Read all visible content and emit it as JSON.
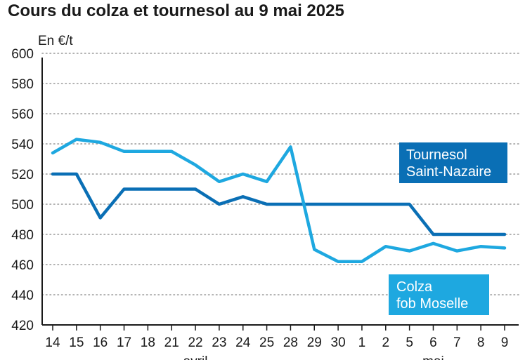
{
  "chart_data": {
    "type": "line",
    "title": "Cours du colza et tournesol au 9 mai 2025",
    "ylabel": "En €/t",
    "xlabel": "",
    "ylim": [
      420,
      600
    ],
    "yticks": [
      420,
      440,
      460,
      480,
      500,
      520,
      540,
      560,
      580,
      600
    ],
    "grid": true,
    "categories": [
      "14",
      "15",
      "16",
      "17",
      "18",
      "21",
      "22",
      "23",
      "24",
      "25",
      "28",
      "29",
      "30",
      "1",
      "2",
      "5",
      "6",
      "7",
      "8",
      "9"
    ],
    "months": [
      "avril",
      "mai"
    ],
    "series": [
      {
        "name_lines": [
          "Tournesol",
          "Saint-Nazaire"
        ],
        "color": "#0a6fb5",
        "values": [
          520,
          520,
          491,
          510,
          510,
          510,
          510,
          500,
          505,
          500,
          500,
          500,
          500,
          500,
          500,
          500,
          480,
          480,
          480,
          480
        ]
      },
      {
        "name_lines": [
          "Colza",
          "fob Moselle"
        ],
        "color": "#1ea8e0",
        "values": [
          534,
          543,
          541,
          535,
          535,
          535,
          526,
          515,
          520,
          515,
          538,
          470,
          462,
          462,
          472,
          469,
          474,
          469,
          472,
          471
        ]
      }
    ]
  }
}
